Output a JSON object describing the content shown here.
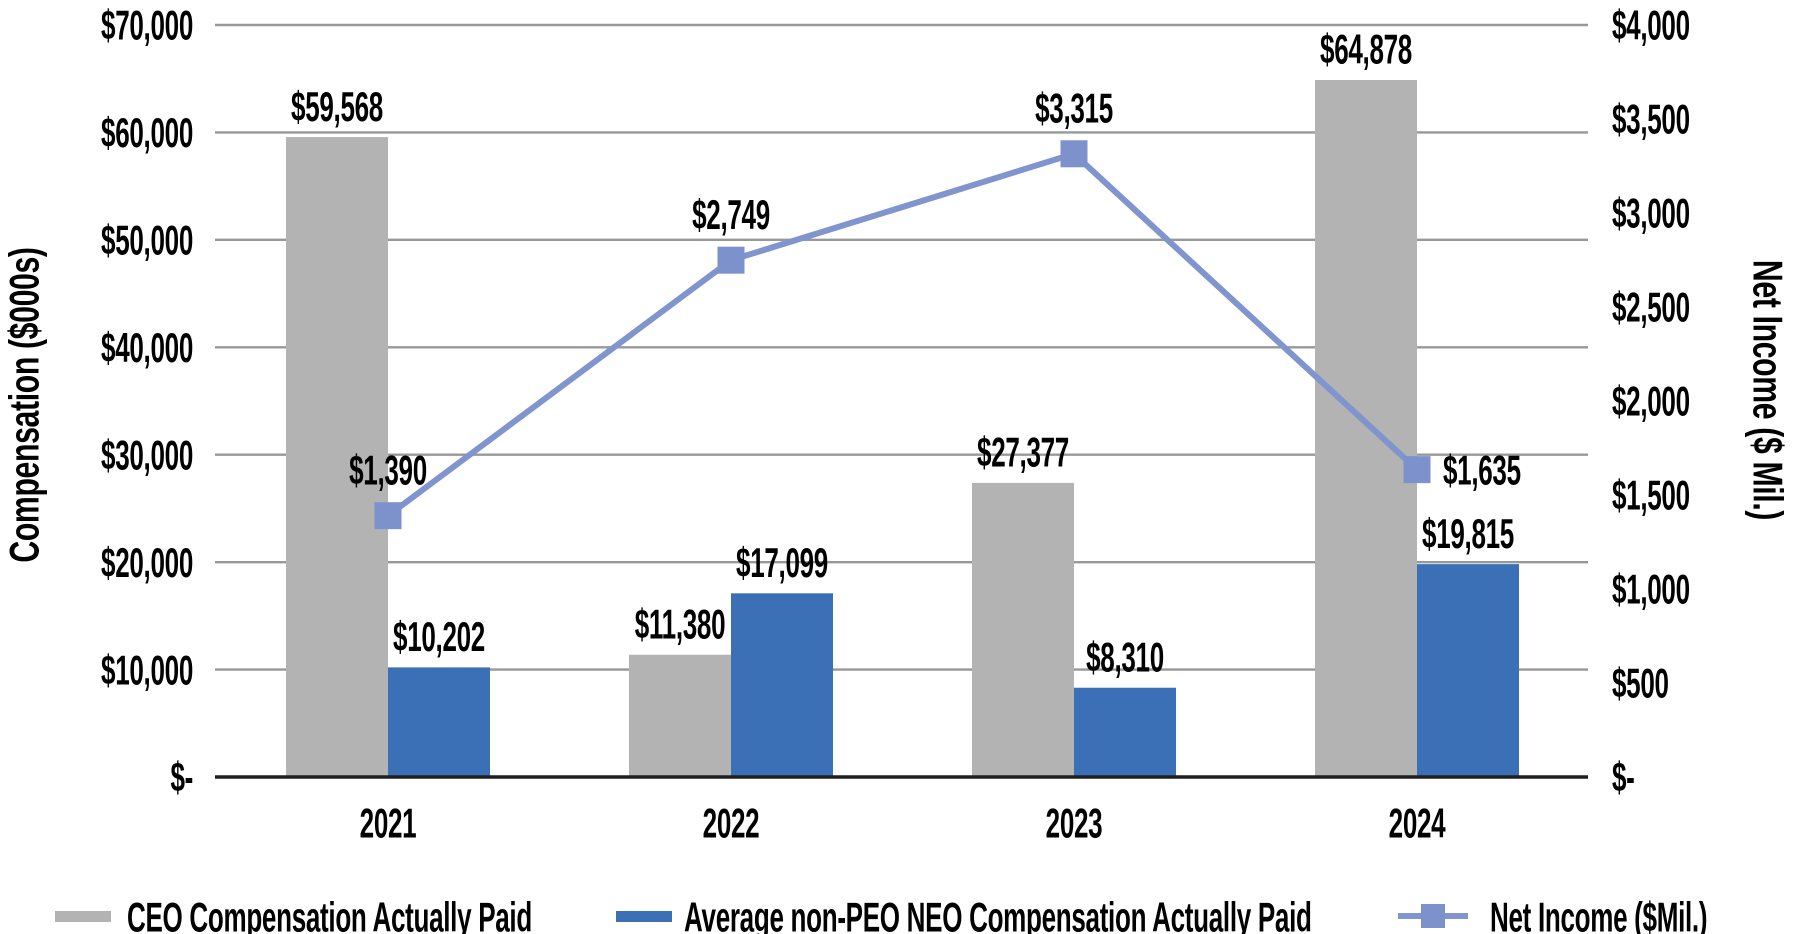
{
  "colors": {
    "ceo_bar": "#B3B3B3",
    "neo_bar": "#3B70B6",
    "net_income_line": "#8094CE",
    "net_income_marker": "#7D92CD",
    "gridline": "#989898",
    "axis_line": "#1F1F1F",
    "text": "#000000"
  },
  "legend": {
    "items": [
      {
        "label": "CEO Compensation Actually Paid",
        "swatch": "bar",
        "color": "#B3B3B3"
      },
      {
        "label": "Average non-PEO NEO Compensation Actually Paid",
        "swatch": "bar",
        "color": "#3B70B6"
      },
      {
        "label": "Net Income ($Mil.)",
        "swatch": "line-square-marker",
        "color": "#8094CE"
      }
    ]
  },
  "chart_data": {
    "type": "combo bar+line, dual axis",
    "grid": "horizontal major gridlines (left axis), legend at bottom",
    "categories": [
      "2021",
      "2022",
      "2023",
      "2024"
    ],
    "left_axis": {
      "title": "Compensation ($000s)",
      "min": 0,
      "max": 70000,
      "step": 10000,
      "tick_labels": [
        "$-",
        "$10,000",
        "$20,000",
        "$30,000",
        "$40,000",
        "$50,000",
        "$60,000",
        "$70,000"
      ]
    },
    "right_axis": {
      "title": "Net Income ($ Mil.)",
      "min": 0,
      "max": 4000,
      "step": 500,
      "tick_labels": [
        "$-",
        "$500",
        "$1,000",
        "$1,500",
        "$2,000",
        "$2,500",
        "$3,000",
        "$3,500",
        "$4,000"
      ]
    },
    "series": [
      {
        "name": "CEO Compensation Actually Paid",
        "type": "bar",
        "axis": "left",
        "values": [
          59568,
          11380,
          27377,
          64878
        ],
        "data_labels": [
          "$59,568",
          "$11,380",
          "$27,377",
          "$64,878"
        ]
      },
      {
        "name": "Average non-PEO NEO Compensation Actually Paid",
        "type": "bar",
        "axis": "left",
        "values": [
          10202,
          17099,
          8310,
          19815
        ],
        "data_labels": [
          "$10,202",
          "$17,099",
          "$8,310",
          "$19,815"
        ]
      },
      {
        "name": "Net Income ($Mil.)",
        "type": "line",
        "axis": "right",
        "marker": "square",
        "values": [
          1390,
          2749,
          3315,
          1635
        ],
        "data_labels": [
          "$1,390",
          "$2,749",
          "$3,315",
          "$1,635"
        ],
        "data_label_positions": [
          "above",
          "above",
          "above",
          "right"
        ]
      }
    ]
  }
}
